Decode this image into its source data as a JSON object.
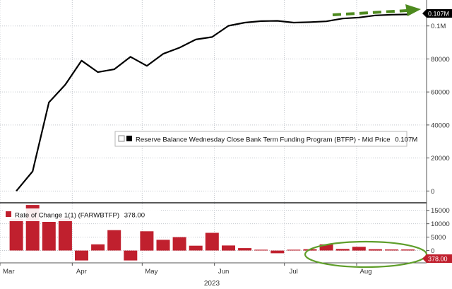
{
  "chart_data": [
    {
      "type": "line",
      "legend": {
        "label": "Reserve Balance Wednesday Close Bank Term Funding Program (BTFP) - Mid Price",
        "value_label": "0.107M",
        "placement": "center-right"
      },
      "x": [
        "2023-03-08",
        "2023-03-15",
        "2023-03-22",
        "2023-03-29",
        "2023-04-05",
        "2023-04-12",
        "2023-04-19",
        "2023-04-26",
        "2023-05-03",
        "2023-05-10",
        "2023-05-17",
        "2023-05-24",
        "2023-05-31",
        "2023-06-07",
        "2023-06-14",
        "2023-06-21",
        "2023-06-28",
        "2023-07-05",
        "2023-07-12",
        "2023-07-19",
        "2023-07-26",
        "2023-08-02",
        "2023-08-09",
        "2023-08-16",
        "2023-08-23"
      ],
      "series": [
        {
          "name": "Reserve Balance Wednesday Close Bank Term Funding Program (BTFP) - Mid Price",
          "values": [
            0,
            11900,
            53700,
            64400,
            79000,
            72000,
            73700,
            81300,
            75800,
            83100,
            86800,
            91800,
            93300,
            100100,
            102000,
            102900,
            103100,
            102000,
            102300,
            102800,
            104500,
            105100,
            106400,
            106800,
            107000
          ]
        }
      ],
      "last_value_label": "0.107M",
      "ylim": [
        -5000,
        114000
      ],
      "yticks": [
        {
          "value": 0,
          "label": "0"
        },
        {
          "value": 20000,
          "label": "20000"
        },
        {
          "value": 40000,
          "label": "40000"
        },
        {
          "value": 60000,
          "label": "60000"
        },
        {
          "value": 80000,
          "label": "80000"
        },
        {
          "value": 100000,
          "label": "0.1M"
        }
      ],
      "grid": true,
      "annotation": "green dashed arrow pointing up-right above the latest values",
      "colors": {
        "line": "#000000",
        "arrow": "#4d8a1e",
        "grid": "#b9bdc4"
      }
    },
    {
      "type": "bar",
      "legend": {
        "label": "Rate of Change 1(1) (FARWBTFP)",
        "value_label": "378.00",
        "placement": "top-left"
      },
      "x": [
        "2023-03-08",
        "2023-03-15",
        "2023-03-22",
        "2023-03-29",
        "2023-04-05",
        "2023-04-12",
        "2023-04-19",
        "2023-04-26",
        "2023-05-03",
        "2023-05-10",
        "2023-05-17",
        "2023-05-24",
        "2023-05-31",
        "2023-06-07",
        "2023-06-14",
        "2023-06-21",
        "2023-06-28",
        "2023-07-05",
        "2023-07-12",
        "2023-07-19",
        "2023-07-26",
        "2023-08-02",
        "2023-08-09",
        "2023-08-16",
        "2023-08-23"
      ],
      "series": [
        {
          "name": "Rate of Change 1(1) (FARWBTFP)",
          "values": [
            11900,
            17000,
            10700,
            11900,
            -3700,
            2300,
            7600,
            -3700,
            7200,
            4000,
            5000,
            1800,
            6600,
            1900,
            900,
            300,
            -1000,
            300,
            500,
            2300,
            600,
            1400,
            500,
            378,
            378
          ]
        }
      ],
      "last_value_label": "378.00",
      "ylim": [
        -4600,
        16500
      ],
      "yticks": [
        {
          "value": 0,
          "label": "0"
        },
        {
          "value": 5000,
          "label": "5000"
        },
        {
          "value": 10000,
          "label": "10000"
        },
        {
          "value": 15000,
          "label": "15000"
        }
      ],
      "grid": true,
      "annotation": "green ellipse highlighting the small July–August bars",
      "colors": {
        "bar": "#c0202e",
        "ellipse": "#5f9e2a",
        "grid": "#b9bdc4"
      }
    }
  ],
  "x_axis": {
    "ticks": [
      {
        "date": "2023-03-01",
        "label": "Mar"
      },
      {
        "date": "2023-04-01",
        "label": "Apr"
      },
      {
        "date": "2023-05-01",
        "label": "May"
      },
      {
        "date": "2023-06-01",
        "label": "Jun"
      },
      {
        "date": "2023-07-01",
        "label": "Jul"
      },
      {
        "date": "2023-08-01",
        "label": "Aug"
      }
    ],
    "year_label": "2023",
    "range": [
      "2023-03-01",
      "2023-08-31"
    ]
  }
}
